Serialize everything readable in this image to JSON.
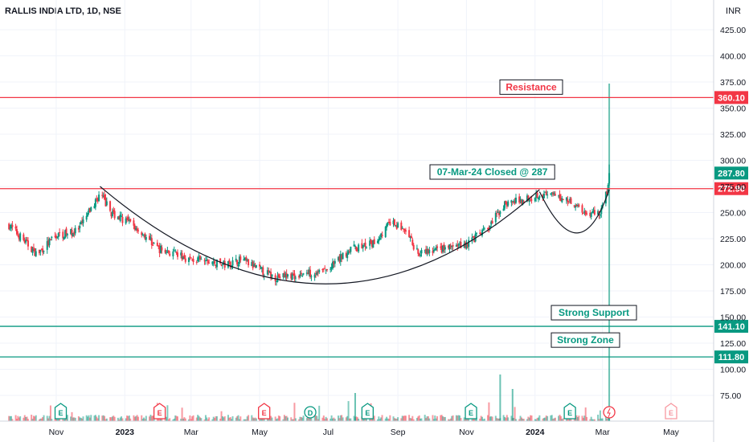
{
  "title": "RALLIS INDIA LTD, 1D, NSE",
  "currency": "INR",
  "chart_data": {
    "type": "candlestick",
    "symbol": "RALLIS INDIA LTD",
    "interval": "1D",
    "exchange": "NSE",
    "y_axis_ticks": [
      "425.00",
      "400.00",
      "375.00",
      "350.00",
      "325.00",
      "300.00",
      "275.00",
      "250.00",
      "225.00",
      "200.00",
      "175.00",
      "150.00",
      "125.00",
      "100.00",
      "75.00"
    ],
    "x_axis_ticks": [
      "Nov",
      "2023",
      "Mar",
      "May",
      "Jul",
      "Sep",
      "Nov",
      "2024",
      "Mar",
      "May"
    ],
    "ylim": [
      50,
      440
    ],
    "horizontal_lines": [
      {
        "label": "Resistance",
        "value": 360.1,
        "price_label": "360.10",
        "color": "#f23645"
      },
      {
        "label": "",
        "value": 272.9,
        "price_label": "272.90",
        "color": "#f23645"
      },
      {
        "label": "Strong Support",
        "value": 141.1,
        "price_label": "141.10",
        "color": "#089981"
      },
      {
        "label": "Strong Zone",
        "value": 111.8,
        "price_label": "111.80",
        "color": "#089981"
      }
    ],
    "last_price": {
      "value": 287.8,
      "label": "287.80"
    },
    "annotation": "07-Mar-24 Closed @ 287",
    "approx_closes": [
      {
        "date": "2022-09-20",
        "close": 238
      },
      {
        "date": "2022-10-15",
        "close": 210
      },
      {
        "date": "2022-11-01",
        "close": 228
      },
      {
        "date": "2022-11-20",
        "close": 232
      },
      {
        "date": "2022-12-10",
        "close": 268
      },
      {
        "date": "2022-12-20",
        "close": 250
      },
      {
        "date": "2023-01-05",
        "close": 240
      },
      {
        "date": "2023-01-15",
        "close": 232
      },
      {
        "date": "2023-02-01",
        "close": 215
      },
      {
        "date": "2023-03-01",
        "close": 205
      },
      {
        "date": "2023-04-01",
        "close": 200
      },
      {
        "date": "2023-04-15",
        "close": 205
      },
      {
        "date": "2023-05-01",
        "close": 195
      },
      {
        "date": "2023-05-15",
        "close": 188
      },
      {
        "date": "2023-06-01",
        "close": 190
      },
      {
        "date": "2023-07-01",
        "close": 195
      },
      {
        "date": "2023-07-20",
        "close": 215
      },
      {
        "date": "2023-08-10",
        "close": 220
      },
      {
        "date": "2023-08-25",
        "close": 240
      },
      {
        "date": "2023-09-05",
        "close": 235
      },
      {
        "date": "2023-09-20",
        "close": 210
      },
      {
        "date": "2023-10-10",
        "close": 215
      },
      {
        "date": "2023-11-01",
        "close": 220
      },
      {
        "date": "2023-11-20",
        "close": 235
      },
      {
        "date": "2023-12-05",
        "close": 258
      },
      {
        "date": "2023-12-20",
        "close": 262
      },
      {
        "date": "2024-01-05",
        "close": 268
      },
      {
        "date": "2024-01-20",
        "close": 265
      },
      {
        "date": "2024-02-01",
        "close": 262
      },
      {
        "date": "2024-02-15",
        "close": 250
      },
      {
        "date": "2024-02-28",
        "close": 250
      },
      {
        "date": "2024-03-05",
        "close": 270
      },
      {
        "date": "2024-03-07",
        "close": 287.8
      }
    ],
    "event_markers": [
      "E",
      "E",
      "E",
      "D",
      "E",
      "E",
      "E",
      "E"
    ],
    "legend": "none",
    "grid": true
  }
}
